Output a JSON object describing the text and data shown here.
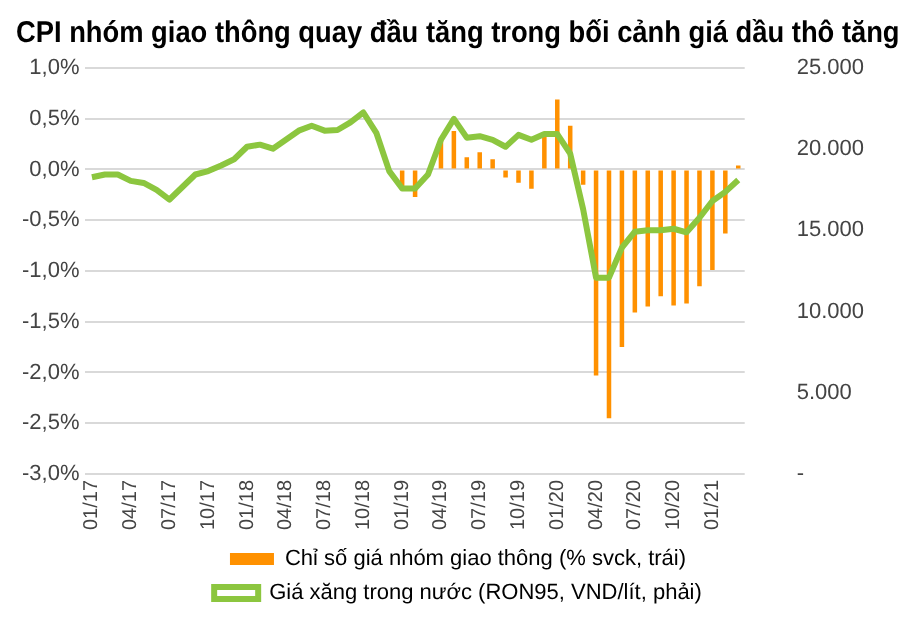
{
  "chart_data": {
    "type": "bar",
    "title": "CPI nhóm giao thông quay đầu tăng trong bối cảnh giá dầu thô tăng",
    "categories": [
      "01/17",
      null,
      null,
      "04/17",
      null,
      null,
      "07/17",
      null,
      null,
      "10/17",
      null,
      null,
      "01/18",
      null,
      null,
      "04/18",
      null,
      null,
      "07/18",
      null,
      null,
      "10/18",
      null,
      null,
      "01/19",
      null,
      null,
      "04/19",
      null,
      null,
      "07/19",
      null,
      null,
      "10/19",
      null,
      null,
      "01/20",
      null,
      null,
      "04/20",
      null,
      null,
      "07/20",
      null,
      null,
      "10/20",
      null,
      null,
      "01/21",
      null,
      null
    ],
    "series": [
      {
        "name": "Chỉ số giá nhóm giao thông (% svck, trái)",
        "color": "#ff9100",
        "values": [
          null,
          null,
          null,
          null,
          null,
          null,
          null,
          null,
          null,
          null,
          null,
          null,
          null,
          null,
          null,
          null,
          null,
          null,
          null,
          null,
          null,
          null,
          null,
          null,
          -0.2,
          -0.27,
          null,
          0.3,
          0.38,
          0.12,
          0.17,
          0.1,
          -0.08,
          -0.13,
          -0.19,
          0.33,
          0.69,
          0.43,
          -0.15,
          -2.03,
          -2.45,
          -1.75,
          -1.41,
          -1.35,
          -1.25,
          -1.34,
          -1.32,
          -1.15,
          -0.99,
          -0.63,
          0.04
        ]
      },
      {
        "name": "Giá xăng trong nước (RON95, VND/lít, phải)",
        "type": "line",
        "axis": "y2",
        "color": "#8cc63f",
        "values": [
          18270,
          18440,
          18440,
          18050,
          17920,
          17500,
          16900,
          17670,
          18440,
          18650,
          19000,
          19380,
          20150,
          20280,
          20030,
          20580,
          21140,
          21440,
          21140,
          21180,
          21650,
          22260,
          21010,
          18650,
          17580,
          17580,
          18440,
          20580,
          21870,
          20710,
          20800,
          20580,
          20150,
          20880,
          20580,
          20930,
          20930,
          19730,
          16300,
          12090,
          12090,
          13940,
          14920,
          15010,
          15010,
          15100,
          14880,
          15780,
          16810,
          17370,
          18100
        ]
      }
    ],
    "ylim": [
      -3,
      1
    ],
    "yticks": [
      {
        "value": -3,
        "label": "-3,0%"
      },
      {
        "value": -2.5,
        "label": "-2,5%"
      },
      {
        "value": -2,
        "label": "-2,0%"
      },
      {
        "value": -1.5,
        "label": "-1,5%"
      },
      {
        "value": -1,
        "label": "-1,0%"
      },
      {
        "value": -0.5,
        "label": "-0,5%"
      },
      {
        "value": 0,
        "label": "0,0%"
      },
      {
        "value": 0.5,
        "label": "0,5%"
      },
      {
        "value": 1,
        "label": "1,0%"
      }
    ],
    "y2lim": [
      0,
      25000
    ],
    "y2ticks": [
      {
        "value": 0,
        "label": "-"
      },
      {
        "value": 5000,
        "label": "5.000"
      },
      {
        "value": 10000,
        "label": "10.000"
      },
      {
        "value": 15000,
        "label": "15.000"
      },
      {
        "value": 20000,
        "label": "20.000"
      },
      {
        "value": 25000,
        "label": "25.000"
      }
    ],
    "grid": "y",
    "legend": "bottom",
    "marker": "none"
  }
}
